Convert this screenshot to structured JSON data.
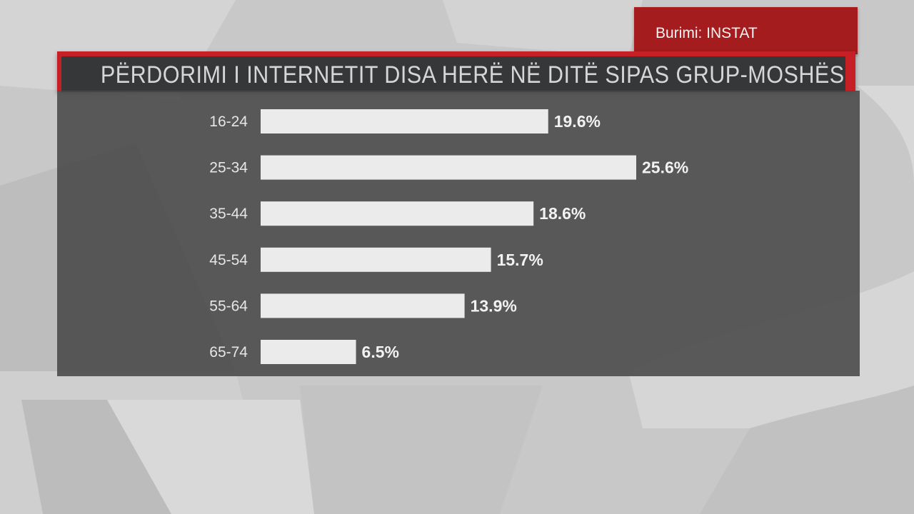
{
  "source": {
    "label": "Burimi: INSTAT"
  },
  "chart_data": {
    "type": "bar",
    "orientation": "horizontal",
    "title": "PËRDORIMI I INTERNETIT DISA HERË NË DITË SIPAS GRUP-MOSHËS",
    "categories": [
      "16-24",
      "25-34",
      "35-44",
      "45-54",
      "55-64",
      "65-74"
    ],
    "values": [
      19.6,
      25.6,
      18.6,
      15.7,
      13.9,
      6.5
    ],
    "value_labels": [
      "19.6%",
      "25.6%",
      "18.6%",
      "15.7%",
      "13.9%",
      "6.5%"
    ],
    "unit": "%",
    "xlim": [
      0,
      25.6
    ],
    "grid": false,
    "legend": "none"
  },
  "colors": {
    "bar": "#ebebeb",
    "panel": "#484848",
    "title_bar": "#363738",
    "accent_red": "#c62026",
    "source_red": "#a41c1e",
    "text_light": "#f2f2f2"
  }
}
